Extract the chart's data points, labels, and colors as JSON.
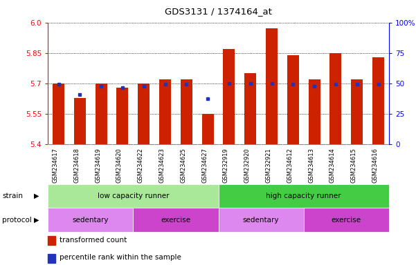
{
  "title": "GDS3131 / 1374164_at",
  "samples": [
    "GSM234617",
    "GSM234618",
    "GSM234619",
    "GSM234620",
    "GSM234622",
    "GSM234623",
    "GSM234625",
    "GSM234627",
    "GSM232919",
    "GSM232920",
    "GSM232921",
    "GSM234612",
    "GSM234613",
    "GSM234614",
    "GSM234615",
    "GSM234616"
  ],
  "red_values": [
    5.7,
    5.63,
    5.7,
    5.68,
    5.7,
    5.72,
    5.72,
    5.55,
    5.87,
    5.75,
    5.97,
    5.84,
    5.72,
    5.85,
    5.72,
    5.83
  ],
  "blue_values": [
    5.695,
    5.645,
    5.685,
    5.68,
    5.685,
    5.695,
    5.695,
    5.625,
    5.7,
    5.7,
    5.7,
    5.695,
    5.685,
    5.695,
    5.695,
    5.695
  ],
  "y_min": 5.4,
  "y_max": 6.0,
  "y_ticks_left": [
    5.4,
    5.55,
    5.7,
    5.85,
    6.0
  ],
  "y_ticks_right": [
    0,
    25,
    50,
    75,
    100
  ],
  "bar_color": "#cc2200",
  "dot_color": "#2233bb",
  "strain_groups": [
    {
      "label": "low capacity runner",
      "start": 0,
      "end": 8,
      "color": "#aae899"
    },
    {
      "label": "high capacity runner",
      "start": 8,
      "end": 16,
      "color": "#44cc44"
    }
  ],
  "protocol_groups": [
    {
      "label": "sedentary",
      "start": 0,
      "end": 4,
      "color": "#dd88ee"
    },
    {
      "label": "exercise",
      "start": 4,
      "end": 8,
      "color": "#cc44cc"
    },
    {
      "label": "sedentary",
      "start": 8,
      "end": 12,
      "color": "#dd88ee"
    },
    {
      "label": "exercise",
      "start": 12,
      "end": 16,
      "color": "#cc44cc"
    }
  ],
  "legend_items": [
    {
      "label": "transformed count",
      "color": "#cc2200"
    },
    {
      "label": "percentile rank within the sample",
      "color": "#2233bb"
    }
  ],
  "sample_bg": "#cccccc",
  "bar_bottom": 5.4,
  "bar_width": 0.55
}
